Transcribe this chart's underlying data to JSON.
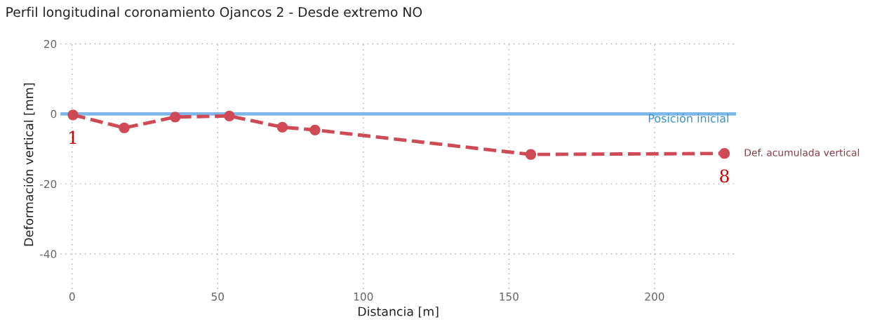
{
  "chart_data": {
    "type": "line",
    "title": "Perfil longitudinal coronamiento Ojancos 2 - Desde extremo NO",
    "xlabel": "Distancia [m]",
    "ylabel": "Deformación vertical [mm]",
    "x": [
      0.3,
      17.9,
      35.4,
      54,
      72.2,
      83.4,
      157.5,
      224
    ],
    "series": [
      {
        "name": "Def. acumulada vertical",
        "color": "#d04a55",
        "values": [
          -0.3,
          -4,
          -0.9,
          -0.6,
          -3.8,
          -4.6,
          -11.6,
          -11.3
        ]
      }
    ],
    "xlim": [
      -4,
      228
    ],
    "xticks": [
      0,
      50,
      100,
      150,
      200
    ],
    "ylim": [
      -50,
      21
    ],
    "yticks": [
      -40,
      -20,
      0,
      20
    ],
    "ref_lines": [
      {
        "axis": "y",
        "value": 0,
        "label": "Posición inicial",
        "color": "#7fb8e8"
      }
    ],
    "annotations": [
      {
        "text": "1",
        "x": 0.3,
        "y": -0.3
      },
      {
        "text": "8",
        "x": 224,
        "y": -11.3
      }
    ],
    "grid": true,
    "marker": "circle",
    "line_style": "dashed",
    "legend": false
  }
}
